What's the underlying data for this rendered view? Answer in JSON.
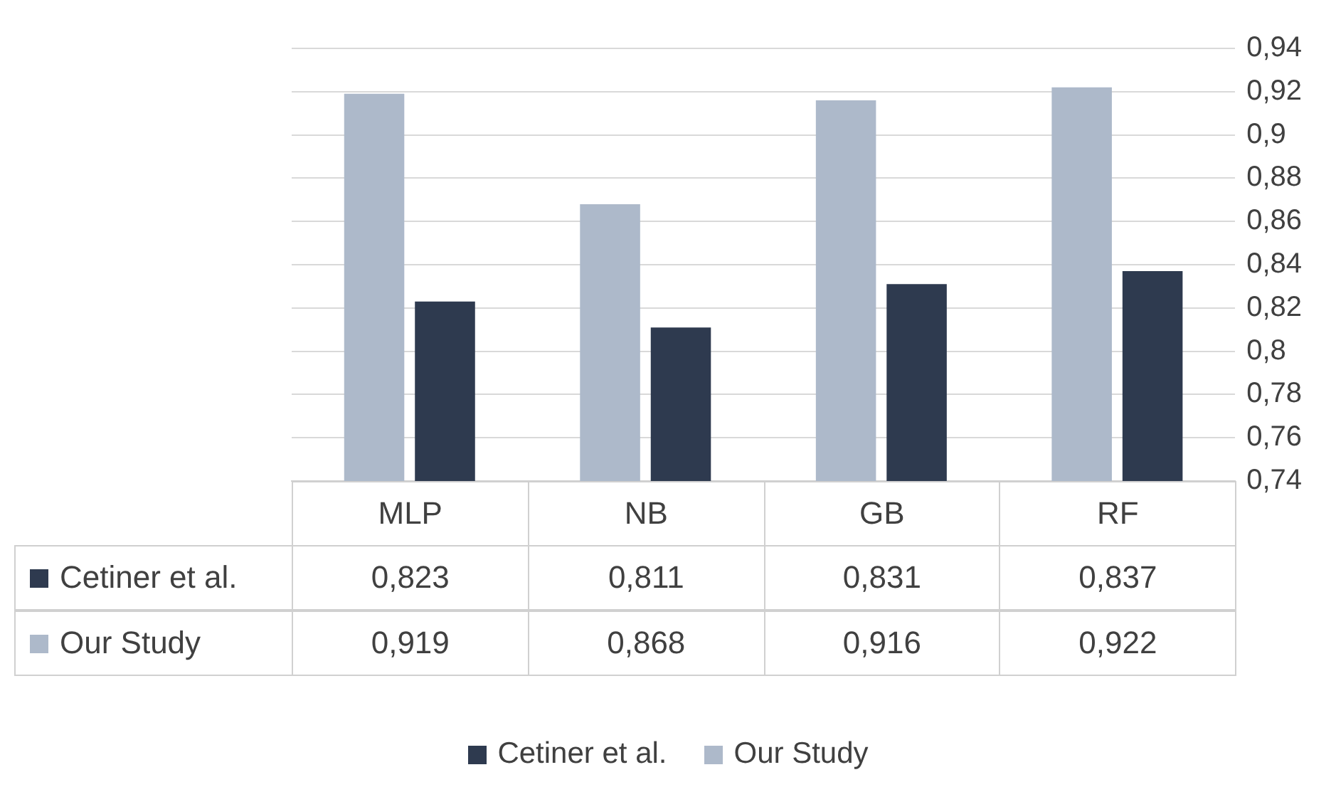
{
  "chart_data": {
    "type": "bar",
    "categories": [
      "MLP",
      "NB",
      "GB",
      "RF"
    ],
    "series": [
      {
        "name": "Our Study",
        "color": "#adb9ca",
        "values": [
          0.919,
          0.868,
          0.916,
          0.922
        ],
        "value_labels": [
          "0,919",
          "0,868",
          "0,916",
          "0,922"
        ]
      },
      {
        "name": "Cetiner et al.",
        "color": "#2e3a4f",
        "values": [
          0.823,
          0.811,
          0.831,
          0.837
        ],
        "value_labels": [
          "0,823",
          "0,811",
          "0,831",
          "0,837"
        ]
      }
    ],
    "ylim": [
      0.74,
      0.94
    ],
    "yticks": [
      {
        "value": 0.74,
        "label": "0,74"
      },
      {
        "value": 0.76,
        "label": "0,76"
      },
      {
        "value": 0.78,
        "label": "0,78"
      },
      {
        "value": 0.8,
        "label": "0,8"
      },
      {
        "value": 0.82,
        "label": "0,82"
      },
      {
        "value": 0.84,
        "label": "0,84"
      },
      {
        "value": 0.86,
        "label": "0,86"
      },
      {
        "value": 0.88,
        "label": "0,88"
      },
      {
        "value": 0.9,
        "label": "0,9"
      },
      {
        "value": 0.92,
        "label": "0,92"
      },
      {
        "value": 0.94,
        "label": "0,94"
      }
    ],
    "grid": "y",
    "legend": "bottom"
  }
}
